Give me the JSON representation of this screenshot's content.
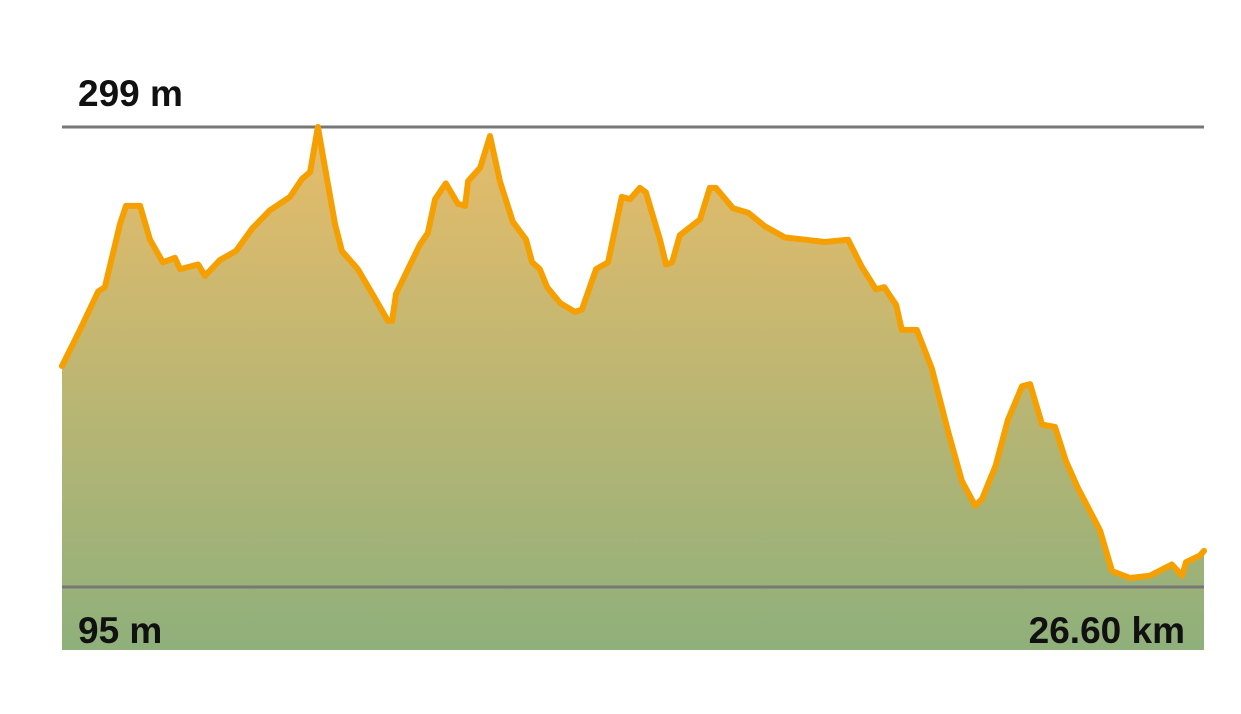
{
  "chart_data": {
    "type": "area",
    "title": "",
    "xlabel": "",
    "ylabel": "",
    "x_unit": "km",
    "y_unit": "m",
    "xlim": [
      0,
      26.6
    ],
    "ylim": [
      95,
      299
    ],
    "labels": {
      "max": "299 m",
      "min": "95 m",
      "distance": "26.60 km"
    },
    "grid": false,
    "colors": {
      "line": "#f5a000",
      "fill_top": "#e8bc6a",
      "fill_bottom": "#8fb07b",
      "rule": "#777777"
    },
    "x": [
      0,
      0.42,
      0.84,
      1.0,
      1.35,
      1.49,
      1.82,
      2.05,
      2.35,
      2.63,
      2.75,
      3.17,
      3.33,
      3.68,
      4.05,
      4.43,
      4.84,
      5.31,
      5.59,
      5.78,
      5.96,
      6.06,
      6.2,
      6.36,
      6.52,
      6.89,
      7.29,
      7.59,
      7.69,
      7.78,
      8.06,
      8.34,
      8.52,
      8.69,
      8.94,
      9.22,
      9.39,
      9.46,
      9.74,
      9.97,
      10.2,
      10.5,
      10.81,
      10.95,
      11.13,
      11.3,
      11.6,
      11.95,
      12.11,
      12.44,
      12.72,
      13.04,
      13.23,
      13.46,
      13.6,
      13.93,
      14.07,
      14.21,
      14.39,
      14.86,
      15.09,
      15.23,
      15.63,
      15.98,
      16.37,
      16.84,
      17.31,
      17.77,
      18.31,
      18.63,
      18.96,
      19.15,
      19.43,
      19.56,
      19.91,
      20.26,
      20.64,
      20.96,
      21.27,
      21.43,
      21.75,
      22.03,
      22.36,
      22.55,
      22.83,
      23.13,
      23.38,
      23.66,
      23.99,
      24.18,
      24.46,
      24.88,
      25.34,
      25.85,
      26.09,
      26.18,
      26.51,
      26.6
    ],
    "y": [
      193,
      209,
      226,
      228,
      256,
      264,
      264,
      249,
      239,
      241,
      236,
      238,
      233,
      240,
      244,
      254,
      262,
      268,
      276,
      279,
      299,
      288,
      273,
      256,
      244,
      236,
      223,
      213,
      213,
      225,
      236,
      247,
      252,
      267,
      274,
      265,
      264,
      275,
      281,
      295,
      275,
      257,
      249,
      239,
      236,
      228,
      221,
      217,
      218,
      236,
      239,
      268,
      267,
      272,
      270,
      249,
      238,
      239,
      251,
      258,
      272,
      272,
      263,
      261,
      255,
      250,
      249,
      248,
      249,
      237,
      227,
      228,
      220,
      209,
      209,
      192,
      164,
      142,
      131,
      134,
      149,
      169,
      184,
      185,
      167,
      166,
      151,
      139,
      127,
      120,
      102,
      99,
      100,
      105,
      100,
      106,
      109,
      111
    ]
  }
}
